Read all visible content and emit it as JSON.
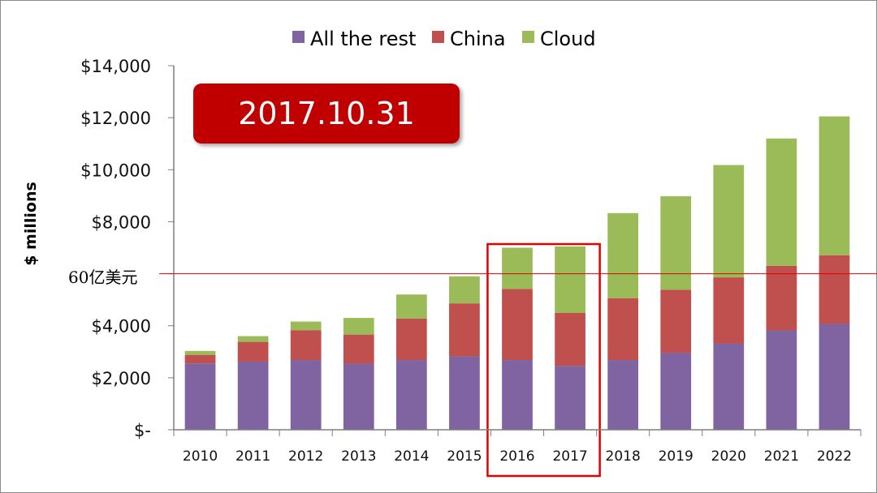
{
  "chart_data": {
    "type": "bar",
    "stacked": true,
    "categories": [
      "2010",
      "2011",
      "2012",
      "2013",
      "2014",
      "2015",
      "2016",
      "2017",
      "2018",
      "2019",
      "2020",
      "2021",
      "2022"
    ],
    "series": [
      {
        "name": "All the rest",
        "color": "#8064a2",
        "values": [
          2550,
          2620,
          2680,
          2540,
          2680,
          2820,
          2680,
          2460,
          2680,
          2960,
          3320,
          3820,
          4070
        ]
      },
      {
        "name": "China",
        "color": "#c0504d",
        "values": [
          330,
          760,
          1150,
          1120,
          1600,
          2040,
          2730,
          2030,
          2380,
          2420,
          2540,
          2480,
          2640
        ]
      },
      {
        "name": "Cloud",
        "color": "#9bbb59",
        "values": [
          150,
          220,
          330,
          640,
          920,
          1040,
          1590,
          2560,
          3270,
          3600,
          4320,
          4900,
          5340
        ]
      }
    ],
    "ylabel": "$ millions",
    "xlabel": "",
    "ylim": [
      0,
      14000
    ],
    "yticks": [
      0,
      2000,
      4000,
      6000,
      8000,
      10000,
      12000,
      14000
    ],
    "ytick_labels": [
      "$-",
      "$2,000",
      "$4,000",
      "",
      "$8,000",
      "$10,000",
      "$12,000",
      "$14,000"
    ],
    "grid": false,
    "legend_position": "top-center",
    "reference_line": {
      "value": 6000,
      "label": "60亿美元",
      "color": "#e00000"
    },
    "highlighted_categories": [
      "2016",
      "2017"
    ],
    "highlight_color": "#e00000"
  },
  "badge": {
    "text": "2017.10.31",
    "color": "#c00000"
  }
}
